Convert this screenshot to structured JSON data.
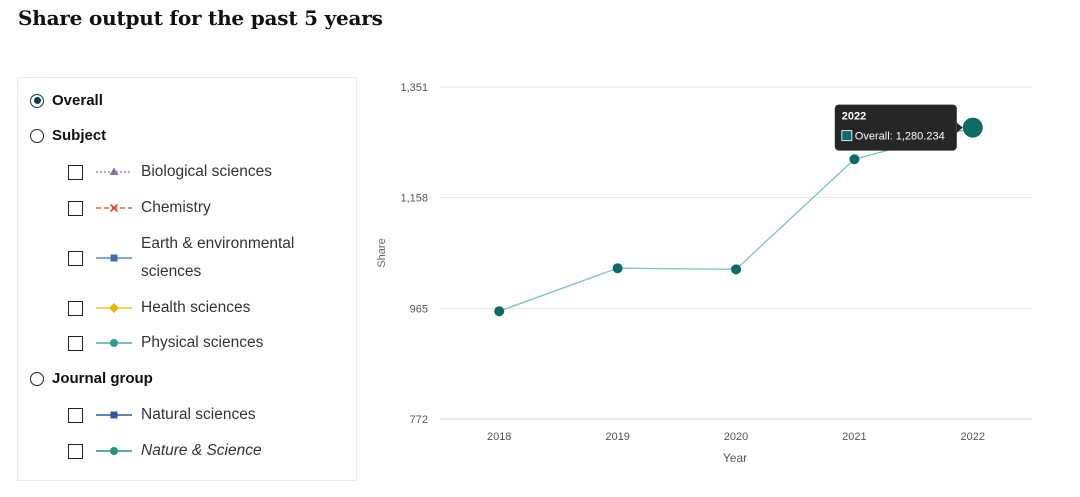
{
  "page": {
    "title": "Share output for the past 5 years"
  },
  "filters": {
    "overall": {
      "label": "Overall",
      "selected": true
    },
    "subject": {
      "label": "Subject",
      "selected": false,
      "items": [
        {
          "label": "Biological sciences",
          "color": "#8e6ba8",
          "marker": "triangle",
          "dash": "2,2",
          "checked": false
        },
        {
          "label": "Chemistry",
          "color": "#d9472b",
          "marker": "cross",
          "dash": "5,3",
          "checked": false
        },
        {
          "label": "Earth & environmental",
          "label_line2": "sciences",
          "color": "#3f6fb5",
          "marker": "square",
          "dash": "",
          "checked": false
        },
        {
          "label": "Health sciences",
          "color": "#e6b800",
          "marker": "diamond",
          "dash": "",
          "checked": false
        },
        {
          "label": "Physical sciences",
          "color": "#2a9d8f",
          "marker": "circle",
          "dash": "",
          "checked": false
        }
      ]
    },
    "journal_group": {
      "label": "Journal group",
      "selected": false,
      "items": [
        {
          "label": "Natural sciences",
          "color": "#2c5aa0",
          "marker": "square",
          "dash": "",
          "checked": false,
          "italic": false
        },
        {
          "label": "Nature & Science",
          "color": "#2a8f80",
          "marker": "circle",
          "dash": "",
          "checked": false,
          "italic": true
        }
      ]
    }
  },
  "chart_data": {
    "type": "line",
    "title": "",
    "xlabel": "Year",
    "ylabel": "Share",
    "x": [
      "2018",
      "2019",
      "2020",
      "2021",
      "2022"
    ],
    "series": [
      {
        "name": "Overall",
        "color": "#0e6b66",
        "values": [
          960,
          1035,
          1033,
          1225,
          1280.234
        ]
      }
    ],
    "ylim": [
      772,
      1351
    ],
    "yticks": [
      772,
      965,
      1158,
      1351
    ],
    "ytick_labels": [
      "772",
      "965",
      "1,158",
      "1,351"
    ],
    "grid": true,
    "tooltip": {
      "title": "2022",
      "series": "Overall",
      "value_text": "1,280.234",
      "index": 4
    }
  }
}
